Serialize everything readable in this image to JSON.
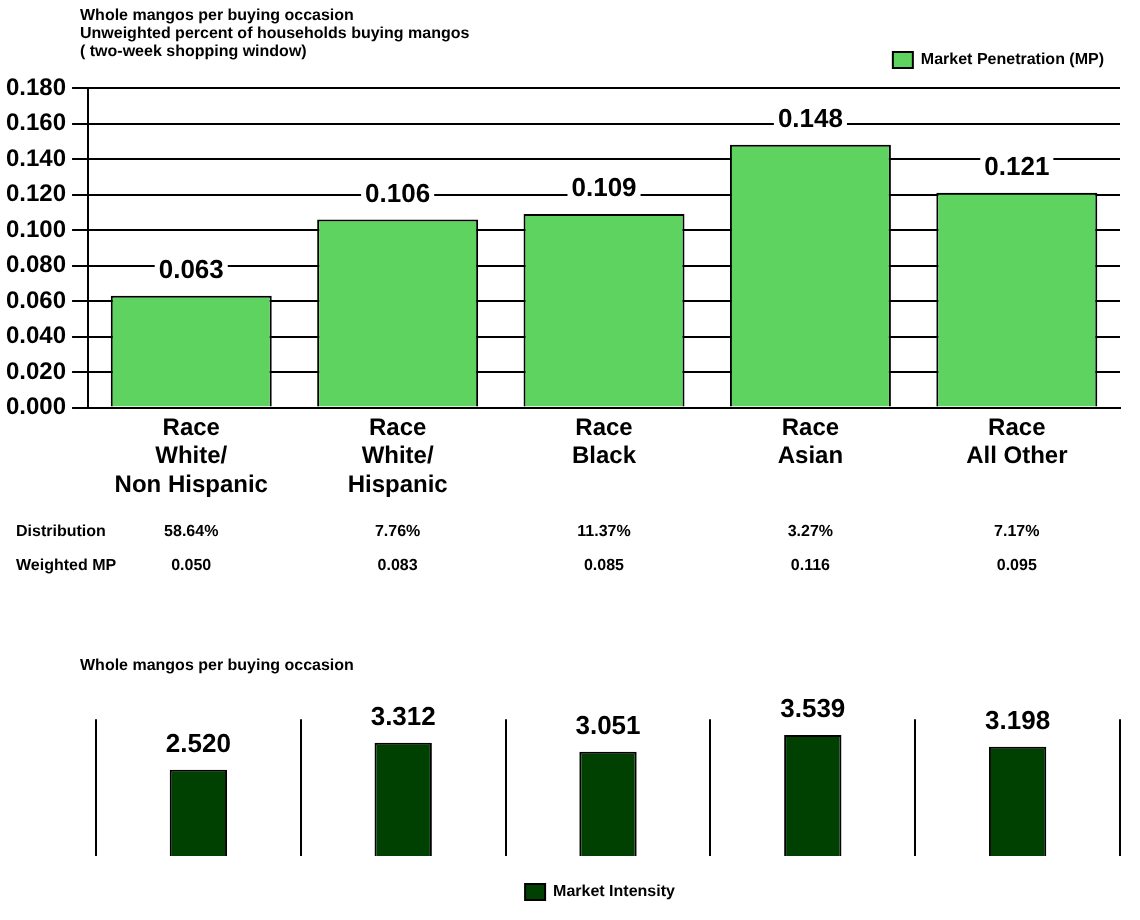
{
  "chart_data": [
    {
      "type": "bar",
      "title": "Unweighted percent of households buying mangos",
      "subtitle": "( two-week shopping window)",
      "annotations": [
        "Whole mangos per buying occasion",
        "Distribution",
        "58.64%",
        "7.76%",
        "11.37%",
        "3.27%",
        "7.17%",
        "Weighted MP",
        "0.050",
        "0.083",
        "0.085",
        "0.116",
        "0.095"
      ],
      "categories": [
        "Race\nWhite/\nNon Hispanic",
        "Race\nWhite/\nHispanic",
        "Race\nBlack",
        "Race\nAsian",
        "Race\nAll Other"
      ],
      "series": [
        {
          "name": "Market Penetration (MP)",
          "color": "#5fd35f",
          "values": [
            0.063,
            0.106,
            0.109,
            0.148,
            0.121
          ]
        }
      ],
      "ylim": [
        0,
        0.18
      ],
      "yticks": [
        {
          "value": 0,
          "label": "0.000"
        },
        {
          "value": 0.02,
          "label": "0.020"
        },
        {
          "value": 0.04,
          "label": "0.040"
        },
        {
          "value": 0.06,
          "label": "0.060"
        },
        {
          "value": 0.08,
          "label": "0.080"
        },
        {
          "value": 0.1,
          "label": "0.100"
        },
        {
          "value": 0.12,
          "label": "0.120"
        },
        {
          "value": 0.14,
          "label": "0.140"
        },
        {
          "value": 0.16,
          "label": "0.160"
        },
        {
          "value": 0.18,
          "label": "0.180"
        }
      ],
      "grid": "y",
      "legend": "top right",
      "data_labels": true
    },
    {
      "type": "bar",
      "title": "Whole mangos per buying occasion",
      "categories": [
        null,
        null,
        null,
        null,
        null
      ],
      "series": [
        {
          "name": "Market Intensity",
          "color": "#004000",
          "values": [
            2.52,
            3.312,
            3.051,
            3.539,
            3.198
          ],
          "value_labels": [
            "2.520",
            "3.312",
            "3.051",
            "3.539",
            "3.198"
          ]
        }
      ],
      "ylim": [
        0,
        4
      ],
      "grid": "x",
      "legend": "bottom",
      "tick_labels": false
    }
  ]
}
